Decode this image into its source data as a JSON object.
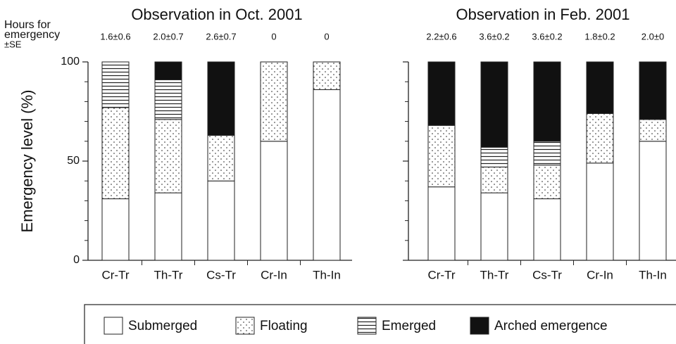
{
  "chart_data": [
    {
      "type": "bar",
      "stacked": true,
      "title": "Observation in Oct. 2001",
      "y_label": "Emergency level (%)",
      "hours_label": [
        "Hours for",
        "emergency",
        "±SE"
      ],
      "annotations": [
        "1.6±0.6",
        "2.0±0.7",
        "2.6±0.7",
        "0",
        "0"
      ],
      "categories": [
        "Cr-Tr",
        "Th-Tr",
        "Cs-Tr",
        "Cr-In",
        "Th-In"
      ],
      "series": [
        {
          "name": "Submerged",
          "pattern": "none",
          "color": "#ffffff",
          "values": [
            31,
            34,
            40,
            60,
            86
          ]
        },
        {
          "name": "Floating",
          "pattern": "dots",
          "color": "#111111",
          "values": [
            46,
            37,
            23,
            40,
            14
          ]
        },
        {
          "name": "Emerged",
          "pattern": "hlines",
          "color": "#111111",
          "values": [
            23,
            20,
            0,
            0,
            0
          ]
        },
        {
          "name": "Arched emergence",
          "pattern": "solid",
          "color": "#111111",
          "values": [
            0,
            9,
            37,
            0,
            0
          ]
        }
      ],
      "ylim": [
        0,
        100
      ],
      "yticks": [
        0,
        50,
        100
      ]
    },
    {
      "type": "bar",
      "stacked": true,
      "title": "Observation in Feb. 2001",
      "annotations": [
        "2.2±0.6",
        "3.6±0.2",
        "3.6±0.2",
        "1.8±0.2",
        "2.0±0"
      ],
      "categories": [
        "Cr-Tr",
        "Th-Tr",
        "Cs-Tr",
        "Cr-In",
        "Th-In"
      ],
      "series": [
        {
          "name": "Submerged",
          "pattern": "none",
          "color": "#ffffff",
          "values": [
            37,
            34,
            31,
            49,
            60
          ]
        },
        {
          "name": "Floating",
          "pattern": "dots",
          "color": "#111111",
          "values": [
            31,
            13,
            17,
            25,
            11
          ]
        },
        {
          "name": "Emerged",
          "pattern": "hlines",
          "color": "#111111",
          "values": [
            0,
            10,
            12,
            0,
            0
          ]
        },
        {
          "name": "Arched emergence",
          "pattern": "solid",
          "color": "#111111",
          "values": [
            32,
            43,
            40,
            26,
            29
          ]
        }
      ],
      "ylim": [
        0,
        100
      ],
      "yticks": [
        0,
        50,
        100
      ]
    }
  ]
}
